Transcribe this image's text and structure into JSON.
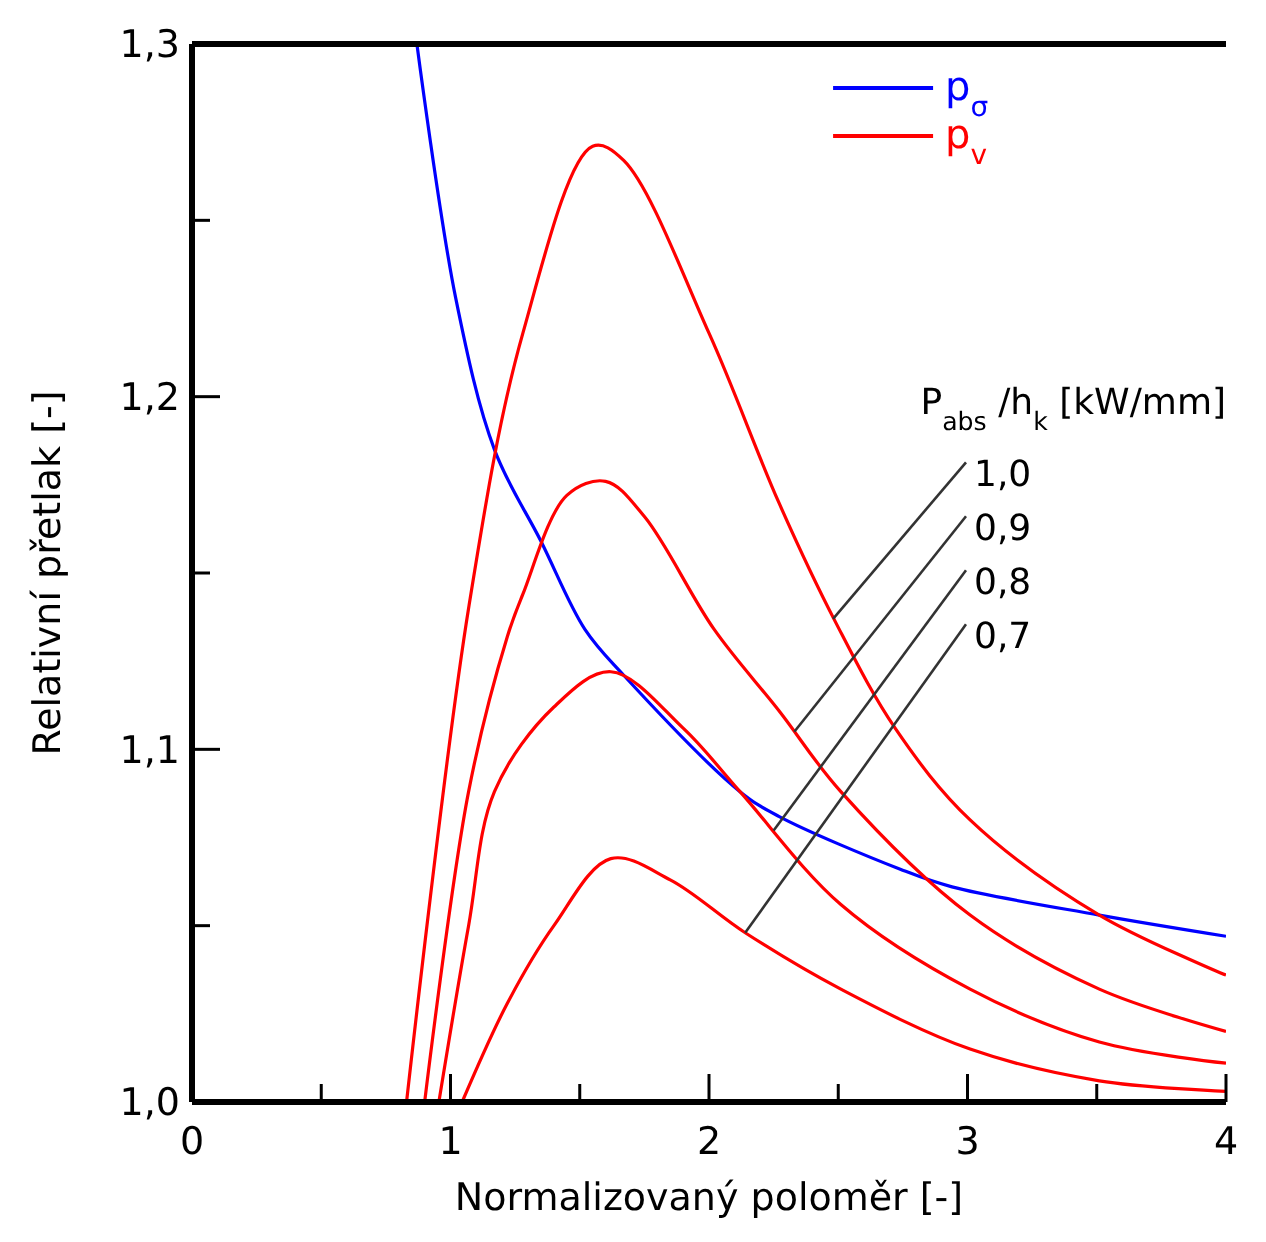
{
  "chart_data": {
    "type": "line",
    "xlabel": "Normalizovaný poloměr  [-]",
    "ylabel": "Relativní přetlak [-]",
    "xlim": [
      0,
      4
    ],
    "ylim": [
      1.0,
      1.3
    ],
    "xticks": [
      0,
      {
        "value": 0.5,
        "label": null
      },
      1,
      {
        "value": 1.5,
        "label": null
      },
      2,
      {
        "value": 2.5,
        "label": null
      },
      3,
      {
        "value": 3.5,
        "label": null
      },
      4
    ],
    "yticks": [
      {
        "value": 1.0,
        "label": "1,0"
      },
      {
        "value": 1.05,
        "label": null
      },
      {
        "value": 1.1,
        "label": "1,1"
      },
      {
        "value": 1.15,
        "label": null
      },
      {
        "value": 1.2,
        "label": "1,2"
      },
      {
        "value": 1.25,
        "label": null
      },
      {
        "value": 1.3,
        "label": "1,3"
      }
    ],
    "legend": "top right",
    "grid": false,
    "marker": "none",
    "line_style": "solid",
    "series": [
      {
        "name": "p$_{σ}$",
        "color": "#0000ff",
        "x": [
          0.87,
          1.02,
          1.17,
          1.35,
          1.52,
          1.67,
          2.12,
          2.27,
          2.74,
          2.94,
          3.51,
          4.0
        ],
        "values": [
          1.3,
          1.228,
          1.185,
          1.159,
          1.134,
          1.121,
          1.088,
          1.081,
          1.066,
          1.061,
          1.053,
          1.047
        ]
      },
      {
        "name": "p$_{v}$",
        "color": "#ff0000",
        "x": [
          0.83,
          1.07,
          1.28,
          1.55,
          1.67,
          2.0,
          2.27,
          2.49,
          2.72,
          3.01,
          3.51,
          4.0
        ],
        "values": [
          1.0,
          1.14,
          1.218,
          1.271,
          1.267,
          1.218,
          1.17,
          1.136,
          1.106,
          1.08,
          1.053,
          1.036
        ]
      },
      {
        "color": "#ff0000",
        "x": [
          0.9,
          1.07,
          1.22,
          1.28,
          1.45,
          1.6,
          1.75,
          2.02,
          2.27,
          2.51,
          3.01,
          3.51,
          4.0
        ],
        "values": [
          1.0,
          1.088,
          1.132,
          1.144,
          1.172,
          1.176,
          1.166,
          1.134,
          1.111,
          1.088,
          1.053,
          1.032,
          1.02
        ]
      },
      {
        "color": "#ff0000",
        "x": [
          0.955,
          1.07,
          1.17,
          1.4,
          1.62,
          1.9,
          2.12,
          2.51,
          3.01,
          3.51,
          4.0
        ],
        "values": [
          1.0,
          1.05,
          1.088,
          1.112,
          1.122,
          1.106,
          1.088,
          1.056,
          1.032,
          1.017,
          1.011
        ]
      },
      {
        "color": "#ff0000",
        "x": [
          1.045,
          1.22,
          1.4,
          1.62,
          1.85,
          2.14,
          2.51,
          3.01,
          3.51,
          4.0
        ],
        "values": [
          1.0,
          1.028,
          1.05,
          1.069,
          1.063,
          1.048,
          1.032,
          1.015,
          1.006,
          1.003
        ]
      }
    ],
    "annotations": [
      "P$_{abs}$ /h$_{k}$ [kW/mm]",
      {
        "text": "1,0",
        "x": 2.48,
        "y": 1.137
      },
      {
        "text": "0,9",
        "x": 2.33,
        "y": 1.105
      },
      {
        "text": "0,8",
        "x": 2.25,
        "y": 1.077
      },
      {
        "text": "0,7",
        "x": 2.14,
        "y": 1.048
      }
    ]
  }
}
